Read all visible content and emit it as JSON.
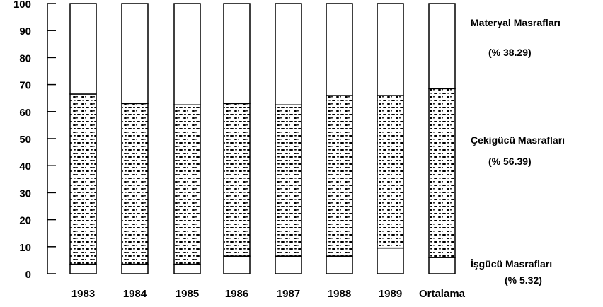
{
  "chart_data": {
    "type": "bar",
    "stacked": true,
    "orientation": "vertical",
    "categories": [
      "1983",
      "1984",
      "1985",
      "1986",
      "1987",
      "1988",
      "1989",
      "Ortalama"
    ],
    "series": [
      {
        "name": "İşgücü Masrafları",
        "values": [
          3.5,
          3.5,
          3.5,
          6.5,
          6.5,
          6.5,
          9.5,
          6.0
        ],
        "fill": "white"
      },
      {
        "name": "Çekigücü Masrafları",
        "values": [
          63.0,
          59.5,
          59.0,
          56.5,
          56.0,
          59.5,
          56.5,
          62.5
        ],
        "fill": "stipple"
      },
      {
        "name": "Materyal Masrafları",
        "values": [
          33.5,
          37.0,
          37.5,
          37.0,
          37.5,
          34.0,
          34.0,
          31.5
        ],
        "fill": "white"
      }
    ],
    "yticks": [
      0,
      10,
      20,
      30,
      40,
      50,
      60,
      70,
      80,
      90,
      100
    ],
    "ylim": [
      0,
      100
    ],
    "grid": false,
    "legend": {
      "placement": "right",
      "entries": [
        {
          "name": "Materyal Masrafları",
          "share": "(% 38.29)"
        },
        {
          "name": "Çekigücü Masrafları",
          "share": "(% 56.39)"
        },
        {
          "name": "İşgücü Masrafları",
          "share": "(% 5.32)"
        }
      ]
    },
    "colors": {
      "stroke": "#000000",
      "fill": "#ffffff",
      "stipple": "#000000"
    }
  }
}
